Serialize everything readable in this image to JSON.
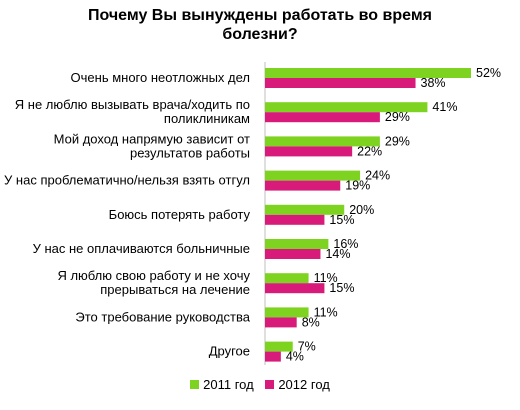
{
  "chart_data": {
    "type": "bar",
    "orientation": "horizontal",
    "title_lines": [
      "Почему Вы вынуждены работать во время",
      "болезни?"
    ],
    "categories": [
      [
        "Очень много неотложных дел"
      ],
      [
        "Я не люблю вызывать врача/ходить по",
        "поликлиникам"
      ],
      [
        "Мой доход напрямую зависит от",
        "результатов работы"
      ],
      [
        "У нас проблематично/нельзя взять отгул"
      ],
      [
        "Боюсь потерять работу"
      ],
      [
        "У нас не оплачиваются больничные"
      ],
      [
        "Я люблю свою работу и не хочу",
        "прерываться на лечение"
      ],
      [
        "Это требование руководства"
      ],
      [
        "Другое"
      ]
    ],
    "series": [
      {
        "name": "2011 год",
        "color": "#7ED321",
        "values": [
          52,
          41,
          29,
          24,
          20,
          16,
          11,
          11,
          7
        ]
      },
      {
        "name": "2012 год",
        "color": "#D81B7A",
        "values": [
          38,
          29,
          22,
          19,
          15,
          14,
          15,
          8,
          4
        ]
      }
    ],
    "value_suffix": "%",
    "xlim": [
      0,
      52
    ],
    "grid": false,
    "legend_position": "bottom"
  }
}
